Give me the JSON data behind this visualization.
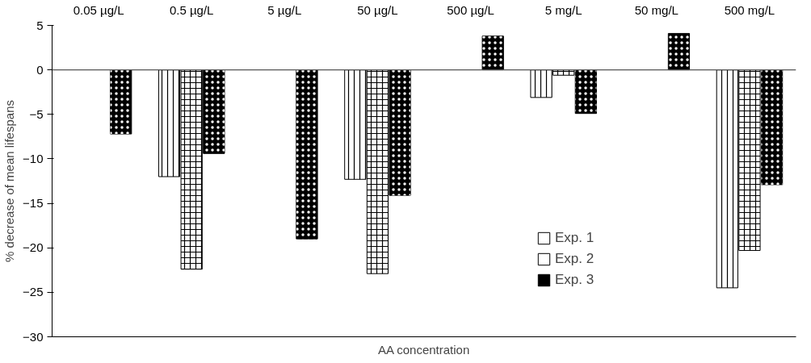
{
  "chart_data": {
    "type": "bar",
    "xlabel": "AA concentration",
    "ylabel": "% decrease of mean lifespans",
    "categories": [
      "0.05 µg/L",
      "0.5 µg/L",
      "5 µg/L",
      "50 µg/L",
      "500 µg/L",
      "5 mg/L",
      "50 mg/L",
      "500 mg/L"
    ],
    "series": [
      {
        "name": "Exp. 1",
        "color": "#ffffff",
        "values": [
          null,
          -12.0,
          null,
          -12.3,
          null,
          -3.1,
          null,
          -24.5
        ]
      },
      {
        "name": "Exp. 2",
        "color": "#ffffff",
        "values": [
          null,
          -22.4,
          null,
          -22.9,
          null,
          -0.6,
          null,
          -20.3
        ]
      },
      {
        "name": "Exp. 3",
        "color": "#000000",
        "values": [
          -7.2,
          -9.4,
          -19.0,
          -14.1,
          3.8,
          -4.9,
          4.1,
          -12.9
        ]
      }
    ],
    "ylim": [
      -30,
      5
    ],
    "yticks": [
      -30,
      -25,
      -20,
      -15,
      -10,
      -5,
      0,
      5
    ],
    "ref_lines": [
      {
        "axis": "y",
        "value": 0
      }
    ],
    "legend": "right"
  }
}
